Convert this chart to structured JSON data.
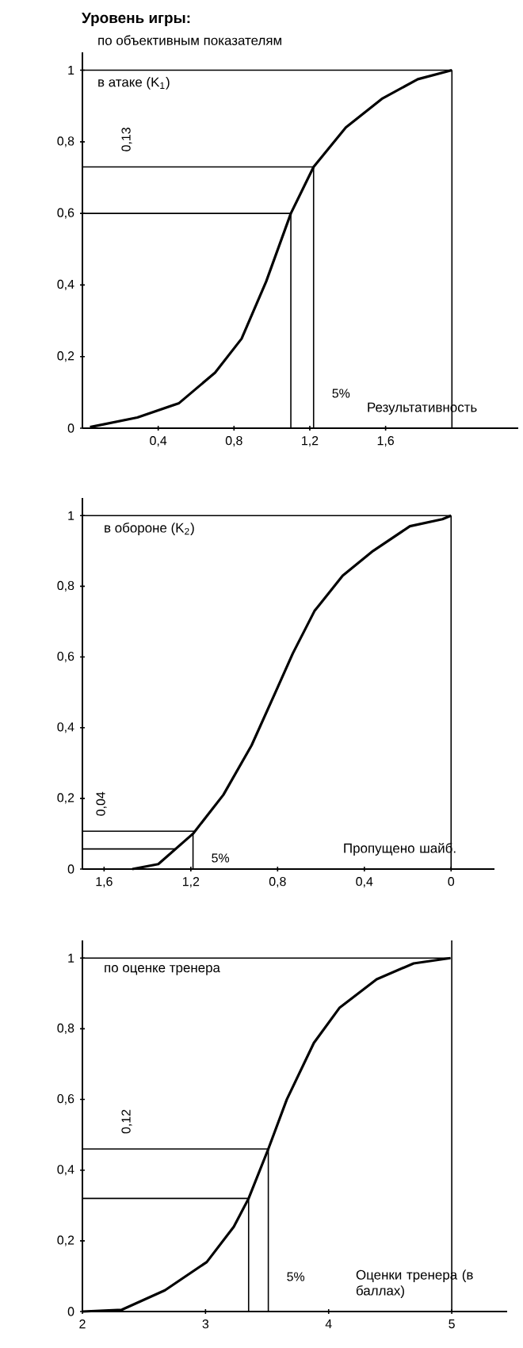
{
  "chart_data": [
    {
      "type": "line",
      "ylabel": "Уровень игры:",
      "title": "по объективным показателям",
      "subtitle": "в атаке (K$_{1}$)",
      "xlabel": "Результативность",
      "xlim": [
        0,
        2.3
      ],
      "ylim": [
        0,
        1.05
      ],
      "xticks": [
        {
          "value": 0.4,
          "label": "0,4"
        },
        {
          "value": 0.8,
          "label": "0,8"
        },
        {
          "value": 1.2,
          "label": "1,2"
        },
        {
          "value": 1.6,
          "label": "1,6"
        }
      ],
      "yticks": [
        0,
        {
          "value": 0.2,
          "label": "0,2"
        },
        {
          "value": 0.4,
          "label": "0,4"
        },
        {
          "value": 0.6,
          "label": "0,6"
        },
        {
          "value": 0.8,
          "label": "0,8"
        },
        1
      ],
      "series": [
        {
          "color": "#000000",
          "x": [
            0.04,
            0.29,
            0.51,
            0.7,
            0.84,
            0.97,
            1.1,
            1.22,
            1.39,
            1.58,
            1.77,
            1.95
          ],
          "values": [
            0.003,
            0.03,
            0.07,
            0.155,
            0.25,
            0.41,
            0.6,
            0.73,
            0.84,
            0.92,
            0.975,
            1
          ]
        }
      ],
      "ref_lines": [
        {
          "axis": "y",
          "value": 0.6
        },
        {
          "axis": "y",
          "value": 0.73
        },
        {
          "axis": "x",
          "value": 1.1
        },
        {
          "axis": "x",
          "value": 1.22
        },
        {
          "axis": "y",
          "value": 1
        },
        {
          "axis": "x",
          "value": 1.95
        }
      ],
      "annotations": [
        "0,13",
        "5%"
      ]
    },
    {
      "type": "line",
      "title": "в обороне (K$_{2}$)",
      "xlabel": "Пропущено шайб.",
      "xlim": [
        1.7,
        -0.2
      ],
      "ylim": [
        0,
        1.05
      ],
      "xticks": [
        {
          "value": 1.6,
          "label": "1,6"
        },
        {
          "value": 1.2,
          "label": "1,2"
        },
        {
          "value": 0.8,
          "label": "0,8"
        },
        {
          "value": 0.4,
          "label": "0,4"
        },
        0
      ],
      "yticks": [
        0,
        {
          "value": 0.2,
          "label": "0,2"
        },
        {
          "value": 0.4,
          "label": "0,4"
        },
        {
          "value": 0.6,
          "label": "0,6"
        },
        {
          "value": 0.8,
          "label": "0,8"
        },
        1
      ],
      "series": [
        {
          "color": "#000000",
          "x": [
            1.47,
            1.35,
            1.19,
            1.05,
            0.92,
            0.81,
            0.73,
            0.63,
            0.5,
            0.36,
            0.19,
            0.04,
            0
          ],
          "values": [
            0,
            0.014,
            0.1,
            0.21,
            0.35,
            0.5,
            0.61,
            0.73,
            0.83,
            0.9,
            0.97,
            0.99,
            1
          ]
        }
      ],
      "ref_lines": [
        {
          "axis": "y",
          "value": 0.057
        },
        {
          "axis": "y",
          "value": 0.107
        },
        {
          "axis": "x",
          "value": 1.19
        },
        {
          "axis": "y",
          "value": 1
        },
        {
          "axis": "x",
          "value": 0
        }
      ],
      "annotations": [
        "0,04",
        "5%"
      ]
    },
    {
      "type": "line",
      "title": "по оценке тренера",
      "xlabel": "Оценки тренера (в баллах)",
      "xlim": [
        2,
        5.45
      ],
      "ylim": [
        0,
        1.05
      ],
      "xticks": [
        2,
        3,
        4,
        5
      ],
      "yticks": [
        0,
        {
          "value": 0.2,
          "label": "0,2"
        },
        {
          "value": 0.4,
          "label": "0,4"
        },
        {
          "value": 0.6,
          "label": "0,6"
        },
        {
          "value": 0.8,
          "label": "0,8"
        },
        1
      ],
      "series": [
        {
          "color": "#000000",
          "x": [
            2.0,
            2.32,
            2.67,
            3.01,
            3.23,
            3.35,
            3.51,
            3.66,
            3.88,
            4.09,
            4.39,
            4.69,
            4.99
          ],
          "values": [
            0,
            0.005,
            0.06,
            0.14,
            0.24,
            0.32,
            0.46,
            0.6,
            0.76,
            0.86,
            0.94,
            0.985,
            1.0
          ]
        }
      ],
      "ref_lines": [
        {
          "axis": "y",
          "value": 0.32
        },
        {
          "axis": "y",
          "value": 0.46
        },
        {
          "axis": "x",
          "value": 3.35
        },
        {
          "axis": "x",
          "value": 3.51
        },
        {
          "axis": "y",
          "value": 1
        },
        {
          "axis": "x",
          "value": 5
        }
      ],
      "annotations": [
        "0,12",
        "5%"
      ]
    }
  ]
}
